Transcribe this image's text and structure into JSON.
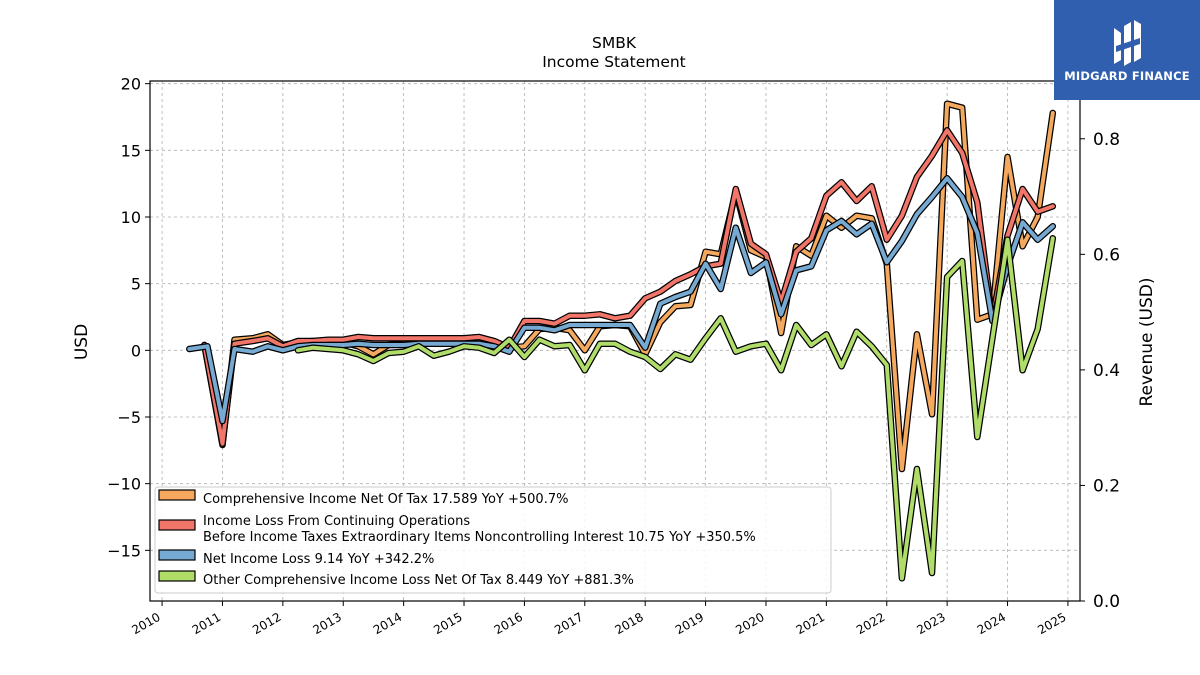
{
  "chart_data": {
    "type": "line",
    "title": "SMBK",
    "subtitle": "Income Statement",
    "ylabel": "USD",
    "y2label": "Revenue (USD)",
    "ylim": [
      -18.8,
      20.2
    ],
    "y2lim": [
      0.0,
      0.9
    ],
    "xlim": [
      2009.8,
      2025.2
    ],
    "yticks": [
      -15,
      -10,
      -5,
      0,
      5,
      10,
      15,
      20
    ],
    "ytick_labels": [
      "−15",
      "−10",
      "−5",
      "0",
      "5",
      "10",
      "15",
      "20"
    ],
    "y2ticks": [
      0.0,
      0.2,
      0.4,
      0.6,
      0.8
    ],
    "y2tick_labels": [
      "0.0",
      "0.2",
      "0.4",
      "0.6",
      "0.8"
    ],
    "xticks": [
      2010,
      2011,
      2012,
      2013,
      2014,
      2015,
      2016,
      2017,
      2018,
      2019,
      2020,
      2021,
      2022,
      2023,
      2024,
      2025
    ],
    "xtick_labels": [
      "2010",
      "2011",
      "2012",
      "2013",
      "2014",
      "2015",
      "2016",
      "2017",
      "2018",
      "2019",
      "2020",
      "2021",
      "2022",
      "2023",
      "2024",
      "2025"
    ],
    "grid": true,
    "legend_position": "lower-left",
    "series": [
      {
        "name": "Comprehensive Income Net Of Tax  17.589 YoY +500.7%",
        "color": "#f5a95e",
        "points": [
          [
            2010.7,
            0.4
          ],
          [
            2011.0,
            -7.1
          ],
          [
            2011.2,
            0.8
          ],
          [
            2011.5,
            0.9
          ],
          [
            2011.75,
            1.2
          ],
          [
            2012.0,
            0.4
          ],
          [
            2012.25,
            0.6
          ],
          [
            2012.5,
            0.7
          ],
          [
            2012.75,
            0.6
          ],
          [
            2013.0,
            0.6
          ],
          [
            2013.25,
            0.3
          ],
          [
            2013.5,
            -0.3
          ],
          [
            2013.75,
            0.4
          ],
          [
            2014.0,
            0.5
          ],
          [
            2014.25,
            0.7
          ],
          [
            2014.5,
            0.6
          ],
          [
            2014.75,
            0.6
          ],
          [
            2015.0,
            0.6
          ],
          [
            2015.25,
            0.7
          ],
          [
            2015.5,
            0.4
          ],
          [
            2015.75,
            0.2
          ],
          [
            2016.0,
            0.3
          ],
          [
            2016.25,
            1.6
          ],
          [
            2016.5,
            1.7
          ],
          [
            2016.75,
            1.5
          ],
          [
            2017.0,
            0.0
          ],
          [
            2017.25,
            1.8
          ],
          [
            2017.5,
            1.9
          ],
          [
            2017.75,
            1.8
          ],
          [
            2018.0,
            -0.3
          ],
          [
            2018.25,
            2.1
          ],
          [
            2018.5,
            3.3
          ],
          [
            2018.75,
            3.4
          ],
          [
            2019.0,
            7.4
          ],
          [
            2019.25,
            7.2
          ],
          [
            2019.5,
            11.9
          ],
          [
            2019.75,
            7.5
          ],
          [
            2020.0,
            7.0
          ],
          [
            2020.25,
            1.3
          ],
          [
            2020.5,
            7.8
          ],
          [
            2020.75,
            7.1
          ],
          [
            2021.0,
            10.1
          ],
          [
            2021.25,
            9.2
          ],
          [
            2021.5,
            10.1
          ],
          [
            2021.75,
            9.9
          ],
          [
            2022.0,
            6.5
          ],
          [
            2022.25,
            -8.9
          ],
          [
            2022.5,
            1.2
          ],
          [
            2022.75,
            -4.8
          ],
          [
            2023.0,
            18.5
          ],
          [
            2023.25,
            18.2
          ],
          [
            2023.5,
            2.3
          ],
          [
            2023.75,
            2.7
          ],
          [
            2024.0,
            14.5
          ],
          [
            2024.25,
            7.8
          ],
          [
            2024.5,
            10.0
          ],
          [
            2024.75,
            17.8
          ]
        ]
      },
      {
        "name": "Income Loss From Continuing Operations\nBefore Income Taxes Extraordinary Items Noncontrolling Interest  10.75 YoY +350.5%",
        "color": "#f2756a",
        "points": [
          [
            2010.7,
            0.4
          ],
          [
            2011.0,
            -7.0
          ],
          [
            2011.2,
            0.5
          ],
          [
            2011.5,
            0.7
          ],
          [
            2011.75,
            0.9
          ],
          [
            2012.0,
            0.3
          ],
          [
            2012.25,
            0.7
          ],
          [
            2012.5,
            0.7
          ],
          [
            2012.75,
            0.8
          ],
          [
            2013.0,
            0.8
          ],
          [
            2013.25,
            1.0
          ],
          [
            2013.5,
            0.9
          ],
          [
            2013.75,
            0.9
          ],
          [
            2014.0,
            0.9
          ],
          [
            2014.25,
            0.9
          ],
          [
            2014.5,
            0.9
          ],
          [
            2014.75,
            0.9
          ],
          [
            2015.0,
            0.9
          ],
          [
            2015.25,
            1.0
          ],
          [
            2015.5,
            0.7
          ],
          [
            2015.75,
            0.2
          ],
          [
            2016.0,
            2.2
          ],
          [
            2016.25,
            2.2
          ],
          [
            2016.5,
            2.0
          ],
          [
            2016.75,
            2.6
          ],
          [
            2017.0,
            2.6
          ],
          [
            2017.25,
            2.7
          ],
          [
            2017.5,
            2.4
          ],
          [
            2017.75,
            2.6
          ],
          [
            2018.0,
            3.9
          ],
          [
            2018.25,
            4.4
          ],
          [
            2018.5,
            5.2
          ],
          [
            2018.75,
            5.7
          ],
          [
            2019.0,
            6.3
          ],
          [
            2019.25,
            6.5
          ],
          [
            2019.5,
            12.1
          ],
          [
            2019.75,
            8.0
          ],
          [
            2020.0,
            7.2
          ],
          [
            2020.25,
            3.6
          ],
          [
            2020.5,
            7.4
          ],
          [
            2020.75,
            8.4
          ],
          [
            2021.0,
            11.6
          ],
          [
            2021.25,
            12.6
          ],
          [
            2021.5,
            11.2
          ],
          [
            2021.75,
            12.3
          ],
          [
            2022.0,
            8.3
          ],
          [
            2022.25,
            10.1
          ],
          [
            2022.5,
            13.0
          ],
          [
            2022.75,
            14.6
          ],
          [
            2023.0,
            16.5
          ],
          [
            2023.25,
            14.8
          ],
          [
            2023.5,
            11.1
          ],
          [
            2023.75,
            2.3
          ],
          [
            2024.0,
            8.6
          ],
          [
            2024.25,
            12.1
          ],
          [
            2024.5,
            10.4
          ],
          [
            2024.75,
            10.8
          ]
        ]
      },
      {
        "name": "Net Income Loss  9.14 YoY +342.2%",
        "color": "#77aad3",
        "points": [
          [
            2010.45,
            0.1
          ],
          [
            2010.75,
            0.3
          ],
          [
            2011.0,
            -5.3
          ],
          [
            2011.2,
            0.1
          ],
          [
            2011.5,
            -0.1
          ],
          [
            2011.75,
            0.3
          ],
          [
            2012.0,
            0.0
          ],
          [
            2012.25,
            0.3
          ],
          [
            2012.5,
            0.4
          ],
          [
            2012.75,
            0.4
          ],
          [
            2013.0,
            0.4
          ],
          [
            2013.25,
            0.5
          ],
          [
            2013.5,
            0.4
          ],
          [
            2013.75,
            0.4
          ],
          [
            2014.0,
            0.4
          ],
          [
            2014.25,
            0.5
          ],
          [
            2014.5,
            0.5
          ],
          [
            2014.75,
            0.5
          ],
          [
            2015.0,
            0.5
          ],
          [
            2015.25,
            0.5
          ],
          [
            2015.5,
            0.3
          ],
          [
            2015.75,
            -0.1
          ],
          [
            2016.0,
            1.7
          ],
          [
            2016.25,
            1.7
          ],
          [
            2016.5,
            1.5
          ],
          [
            2016.75,
            1.9
          ],
          [
            2017.0,
            1.9
          ],
          [
            2017.25,
            1.9
          ],
          [
            2017.5,
            1.9
          ],
          [
            2017.75,
            1.9
          ],
          [
            2018.0,
            0.2
          ],
          [
            2018.25,
            3.5
          ],
          [
            2018.5,
            4.0
          ],
          [
            2018.75,
            4.4
          ],
          [
            2019.0,
            6.5
          ],
          [
            2019.25,
            4.6
          ],
          [
            2019.5,
            9.2
          ],
          [
            2019.75,
            5.8
          ],
          [
            2020.0,
            6.6
          ],
          [
            2020.25,
            2.7
          ],
          [
            2020.5,
            6.0
          ],
          [
            2020.75,
            6.3
          ],
          [
            2021.0,
            9.0
          ],
          [
            2021.25,
            9.7
          ],
          [
            2021.5,
            8.7
          ],
          [
            2021.75,
            9.5
          ],
          [
            2022.0,
            6.6
          ],
          [
            2022.25,
            8.2
          ],
          [
            2022.5,
            10.2
          ],
          [
            2022.75,
            11.5
          ],
          [
            2023.0,
            12.9
          ],
          [
            2023.25,
            11.5
          ],
          [
            2023.5,
            8.8
          ],
          [
            2023.75,
            2.2
          ],
          [
            2024.0,
            6.3
          ],
          [
            2024.25,
            9.6
          ],
          [
            2024.5,
            8.3
          ],
          [
            2024.75,
            9.3
          ]
        ]
      },
      {
        "name": "Other Comprehensive Income Loss Net Of Tax  8.449 YoY +881.3%",
        "color": "#b0dd6a",
        "points": [
          [
            2012.25,
            0.0
          ],
          [
            2012.5,
            0.2
          ],
          [
            2012.75,
            0.1
          ],
          [
            2013.0,
            0.0
          ],
          [
            2013.25,
            -0.3
          ],
          [
            2013.5,
            -0.8
          ],
          [
            2013.75,
            -0.2
          ],
          [
            2014.0,
            -0.1
          ],
          [
            2014.25,
            0.3
          ],
          [
            2014.5,
            -0.4
          ],
          [
            2014.75,
            -0.1
          ],
          [
            2015.0,
            0.3
          ],
          [
            2015.25,
            0.2
          ],
          [
            2015.5,
            -0.2
          ],
          [
            2015.75,
            0.8
          ],
          [
            2016.0,
            -0.5
          ],
          [
            2016.25,
            0.8
          ],
          [
            2016.5,
            0.3
          ],
          [
            2016.75,
            0.4
          ],
          [
            2017.0,
            -1.5
          ],
          [
            2017.25,
            0.5
          ],
          [
            2017.5,
            0.5
          ],
          [
            2017.75,
            -0.1
          ],
          [
            2018.0,
            -0.5
          ],
          [
            2018.25,
            -1.4
          ],
          [
            2018.5,
            -0.3
          ],
          [
            2018.75,
            -0.7
          ],
          [
            2019.0,
            0.9
          ],
          [
            2019.25,
            2.4
          ],
          [
            2019.5,
            -0.1
          ],
          [
            2019.75,
            0.3
          ],
          [
            2020.0,
            0.5
          ],
          [
            2020.25,
            -1.5
          ],
          [
            2020.5,
            1.9
          ],
          [
            2020.75,
            0.4
          ],
          [
            2021.0,
            1.2
          ],
          [
            2021.25,
            -1.2
          ],
          [
            2021.5,
            1.4
          ],
          [
            2021.75,
            0.3
          ],
          [
            2022.0,
            -1.1
          ],
          [
            2022.25,
            -17.1
          ],
          [
            2022.5,
            -8.9
          ],
          [
            2022.75,
            -16.7
          ],
          [
            2023.0,
            5.5
          ],
          [
            2023.25,
            6.7
          ],
          [
            2023.5,
            -6.5
          ],
          [
            2023.75,
            0.9
          ],
          [
            2024.0,
            8.3
          ],
          [
            2024.25,
            -1.5
          ],
          [
            2024.5,
            1.6
          ],
          [
            2024.75,
            8.4
          ]
        ]
      }
    ]
  },
  "branding": {
    "logo_text": "MIDGARD FINANCE",
    "logo_color": "#2f5fae"
  }
}
